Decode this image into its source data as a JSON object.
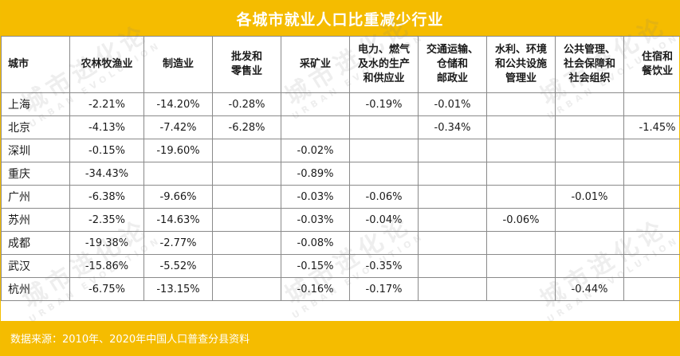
{
  "title": "各城市就业人口比重减少行业",
  "source": "数据来源：2010年、2020年中国人口普查分县资料",
  "watermark": {
    "main": "城市进化论",
    "sub": "URBAN EVOLUTION"
  },
  "headers": [
    "城市",
    "农林牧渔业",
    "制造业",
    "批发和\n零售业",
    "采矿业",
    "电力、燃气\n及水的生产\n和供应业",
    "交通运输、\n仓储和\n邮政业",
    "水利、环境\n和公共设施\n管理业",
    "公共管理、\n社会保障和\n社会组织",
    "住宿和\n餐饮业"
  ],
  "rows": [
    [
      "上海",
      "-2.21%",
      "-14.20%",
      "-0.28%",
      "",
      "-0.19%",
      "-0.01%",
      "",
      "",
      ""
    ],
    [
      "北京",
      "-4.13%",
      "-7.42%",
      "-6.28%",
      "",
      "",
      "-0.34%",
      "",
      "",
      "-1.45%"
    ],
    [
      "深圳",
      "-0.15%",
      "-19.60%",
      "",
      "-0.02%",
      "",
      "",
      "",
      "",
      ""
    ],
    [
      "重庆",
      "-34.43%",
      "",
      "",
      "-0.89%",
      "",
      "",
      "",
      "",
      ""
    ],
    [
      "广州",
      "-6.38%",
      "-9.66%",
      "",
      "-0.03%",
      "-0.06%",
      "",
      "",
      "-0.01%",
      ""
    ],
    [
      "苏州",
      "-2.35%",
      "-14.63%",
      "",
      "-0.03%",
      "-0.04%",
      "",
      "-0.06%",
      "",
      ""
    ],
    [
      "成都",
      "-19.38%",
      "-2.77%",
      "",
      "-0.08%",
      "",
      "",
      "",
      "",
      ""
    ],
    [
      "武汉",
      "-15.86%",
      "-5.52%",
      "",
      "-0.15%",
      "-0.35%",
      "",
      "",
      "",
      ""
    ],
    [
      "杭州",
      "-6.75%",
      "-13.15%",
      "",
      "-0.16%",
      "-0.17%",
      "",
      "",
      "-0.44%",
      ""
    ]
  ],
  "colors": {
    "accent": "#f5bc00",
    "border": "#8a8a8a",
    "title_text": "#ffffff"
  }
}
